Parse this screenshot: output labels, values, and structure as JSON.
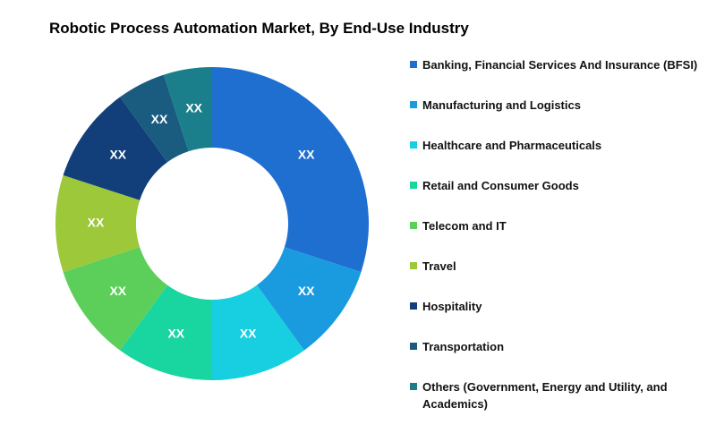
{
  "chart_data": {
    "type": "donut",
    "title": "Robotic Process Automation Market, By End-Use Industry",
    "categories": [
      "Banking, Financial Services And Insurance (BFSI)",
      "Manufacturing and Logistics",
      "Healthcare and Pharmaceuticals",
      "Retail and Consumer Goods",
      "Telecom and IT",
      "Travel",
      "Hospitality",
      "Transportation",
      "Others (Government, Energy and Utility, and Academics)"
    ],
    "values": [
      30,
      10,
      10,
      10,
      10,
      10,
      10,
      5,
      5
    ],
    "value_labels": [
      "XX",
      "XX",
      "XX",
      "XX",
      "XX",
      "XX",
      "XX",
      "XX",
      "XX"
    ],
    "colors": [
      "#1f6fd1",
      "#1a9be0",
      "#17cfe0",
      "#19d6a0",
      "#5ccf5a",
      "#9cc83a",
      "#123f7a",
      "#1a5b80",
      "#1a7f8a"
    ]
  }
}
